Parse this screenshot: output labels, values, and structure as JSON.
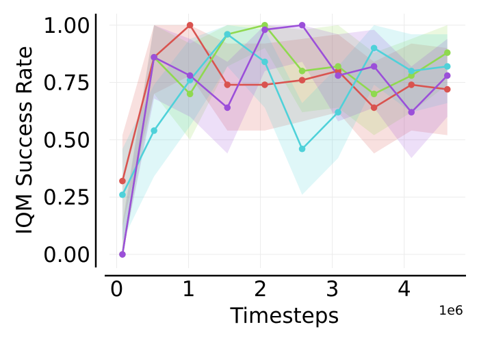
{
  "chart_data": {
    "type": "line",
    "xlabel": "Timesteps",
    "ylabel": "IQM Success Rate",
    "x_offset_label": "1e6",
    "xlim": [
      -0.1,
      4.85
    ],
    "ylim": [
      -0.06,
      1.05
    ],
    "xticks": [
      0,
      1,
      2,
      3,
      4
    ],
    "xtick_labels": [
      "0",
      "1",
      "2",
      "3",
      "4"
    ],
    "yticks": [
      0.0,
      0.25,
      0.5,
      0.75,
      1.0
    ],
    "ytick_labels": [
      "0.00",
      "0.25",
      "0.50",
      "0.75",
      "1.00"
    ],
    "grid": true,
    "x": [
      0.08,
      0.52,
      1.02,
      1.54,
      2.06,
      2.58,
      3.08,
      3.58,
      4.1,
      4.6
    ],
    "series": [
      {
        "color": "#d9534f",
        "values": [
          0.32,
          0.86,
          1.0,
          0.74,
          0.74,
          0.76,
          0.8,
          0.64,
          0.74,
          0.72
        ],
        "lower": [
          0.12,
          0.7,
          0.78,
          0.54,
          0.54,
          0.58,
          0.62,
          0.44,
          0.54,
          0.52
        ],
        "upper": [
          0.52,
          1.0,
          1.0,
          0.92,
          0.92,
          0.94,
          0.96,
          0.84,
          0.92,
          0.9
        ]
      },
      {
        "color": "#8fd94f",
        "values": [
          0.0,
          0.86,
          0.7,
          0.96,
          1.0,
          0.8,
          0.82,
          0.7,
          0.78,
          0.88
        ],
        "lower": [
          0.0,
          0.7,
          0.5,
          0.82,
          0.9,
          0.62,
          0.64,
          0.52,
          0.62,
          0.74
        ],
        "upper": [
          0.14,
          1.0,
          0.92,
          1.0,
          1.0,
          0.98,
          1.0,
          0.88,
          0.94,
          1.0
        ]
      },
      {
        "color": "#4fd1d9",
        "values": [
          0.26,
          0.54,
          0.76,
          0.96,
          0.84,
          0.46,
          0.62,
          0.9,
          0.8,
          0.82
        ],
        "lower": [
          0.06,
          0.34,
          0.56,
          0.82,
          0.64,
          0.26,
          0.42,
          0.74,
          0.62,
          0.66
        ],
        "upper": [
          0.46,
          0.74,
          0.94,
          1.0,
          0.98,
          0.66,
          0.82,
          1.0,
          0.96,
          0.96
        ]
      },
      {
        "color": "#9b4fd9",
        "values": [
          0.0,
          0.86,
          0.78,
          0.64,
          0.98,
          1.0,
          0.78,
          0.82,
          0.62,
          0.78
        ],
        "lower": [
          0.0,
          0.68,
          0.6,
          0.44,
          0.8,
          0.84,
          0.58,
          0.64,
          0.42,
          0.6
        ],
        "upper": [
          0.12,
          1.0,
          0.94,
          0.84,
          1.0,
          1.0,
          0.96,
          0.98,
          0.82,
          0.94
        ]
      }
    ]
  }
}
